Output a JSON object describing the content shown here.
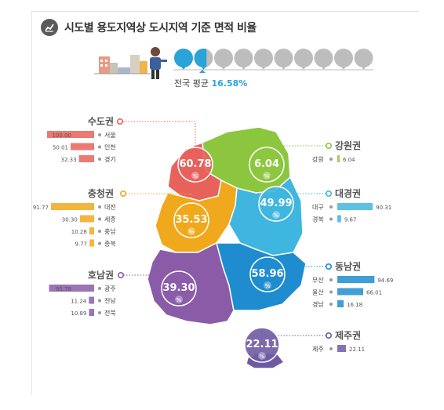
{
  "title": "시도별 용도지역상 도시지역 기준 면적 비율",
  "national_average": {
    "label": "전국 평균",
    "value": "16.58%",
    "fraction": 0.1658
  },
  "colors": {
    "capital": "#e8625c",
    "gangwon": "#8cc63f",
    "chungcheong": "#f0a81c",
    "daegyeong": "#3fb6df",
    "dongnam": "#1f8ccf",
    "honam": "#8a5ca8",
    "jeju": "#6e5aa3",
    "grey": "#bdbdbd",
    "avg": "#2aa3d8"
  },
  "icons": [
    "chart-icon",
    "city-icon",
    "person-icon",
    "percent-icon"
  ],
  "chart_data": {
    "type": "bar",
    "unit": "%",
    "regions": [
      {
        "key": "capital",
        "name": "수도권",
        "total": "60.78",
        "cities": [
          {
            "name": "서울",
            "value": 100.0,
            "label": "100.00"
          },
          {
            "name": "인천",
            "value": 50.01,
            "label": "50.01"
          },
          {
            "name": "경기",
            "value": 32.33,
            "label": "32.33"
          }
        ]
      },
      {
        "key": "chungcheong",
        "name": "충청권",
        "total": "35.53",
        "cities": [
          {
            "name": "대전",
            "value": 91.77,
            "label": "91.77"
          },
          {
            "name": "세종",
            "value": 30.3,
            "label": "30.30"
          },
          {
            "name": "충남",
            "value": 10.28,
            "label": "10.28"
          },
          {
            "name": "충북",
            "value": 9.77,
            "label": "9.77"
          }
        ]
      },
      {
        "key": "honam",
        "name": "호남권",
        "total": "39.30",
        "cities": [
          {
            "name": "광주",
            "value": 95.78,
            "label": "95.78"
          },
          {
            "name": "전남",
            "value": 11.24,
            "label": "11.24"
          },
          {
            "name": "전북",
            "value": 10.89,
            "label": "10.89"
          }
        ]
      },
      {
        "key": "gangwon",
        "name": "강원권",
        "total": "6.04",
        "cities": [
          {
            "name": "강원",
            "value": 6.04,
            "label": "6.04"
          }
        ]
      },
      {
        "key": "daegyeong",
        "name": "대경권",
        "total": "49.99",
        "cities": [
          {
            "name": "대구",
            "value": 90.31,
            "label": "90.31"
          },
          {
            "name": "경북",
            "value": 9.67,
            "label": "9.67"
          }
        ]
      },
      {
        "key": "dongnam",
        "name": "동남권",
        "total": "58.96",
        "cities": [
          {
            "name": "부산",
            "value": 94.69,
            "label": "94.69"
          },
          {
            "name": "울산",
            "value": 66.01,
            "label": "66.01"
          },
          {
            "name": "경남",
            "value": 16.18,
            "label": "16.18"
          }
        ]
      },
      {
        "key": "jeju",
        "name": "제주권",
        "total": "22.11",
        "cities": [
          {
            "name": "제주",
            "value": 22.11,
            "label": "22.11"
          }
        ]
      }
    ]
  }
}
